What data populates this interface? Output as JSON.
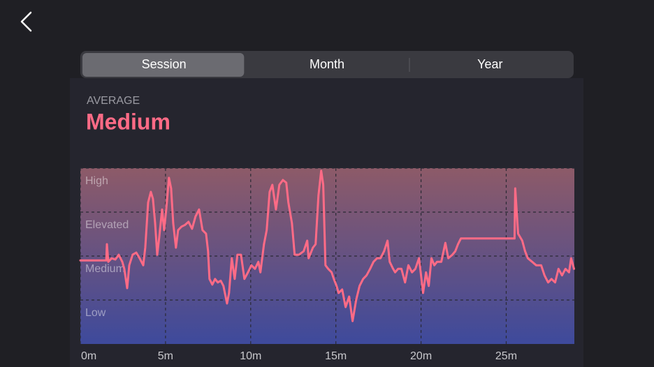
{
  "tabs": {
    "items": [
      "Session",
      "Month",
      "Year"
    ],
    "selected": 0
  },
  "summary": {
    "label": "AVERAGE",
    "value": "Medium"
  },
  "chart_data": {
    "type": "line",
    "color": "#ff6b86",
    "grid": true,
    "x": [
      0,
      1.52,
      1.56,
      1.64,
      1.84,
      2.05,
      2.25,
      2.46,
      2.58,
      2.75,
      2.87,
      3.07,
      3.28,
      3.48,
      3.69,
      3.81,
      3.98,
      4.14,
      4.26,
      4.39,
      4.51,
      4.63,
      4.8,
      4.92,
      5.04,
      5.2,
      5.33,
      5.45,
      5.61,
      5.74,
      5.94,
      6.15,
      6.35,
      6.56,
      6.76,
      6.97,
      7.17,
      7.38,
      7.5,
      7.58,
      7.75,
      7.91,
      8.07,
      8.24,
      8.4,
      8.61,
      8.73,
      8.89,
      9.06,
      9.22,
      9.43,
      9.63,
      9.84,
      10.04,
      10.25,
      10.45,
      10.57,
      10.78,
      10.94,
      11.11,
      11.27,
      11.48,
      11.68,
      11.89,
      12.09,
      12.21,
      12.42,
      12.58,
      12.83,
      13.11,
      13.32,
      13.4,
      13.65,
      13.81,
      13.98,
      14.14,
      14.26,
      14.39,
      14.55,
      14.75,
      14.88,
      15.04,
      15.16,
      15.37,
      15.57,
      15.78,
      15.98,
      16.19,
      16.39,
      16.6,
      16.8,
      17.01,
      17.21,
      17.42,
      17.62,
      17.83,
      18.03,
      18.16,
      18.36,
      18.48,
      18.65,
      18.85,
      19.06,
      19.26,
      19.47,
      19.67,
      19.88,
      20.0,
      20.12,
      20.29,
      20.45,
      20.61,
      20.78,
      20.94,
      21.19,
      21.43,
      21.6,
      21.84,
      22.01,
      22.17,
      22.34,
      22.5,
      25.49,
      25.53,
      25.7,
      25.94,
      26.11,
      26.27,
      26.52,
      26.76,
      27.05,
      27.25,
      27.46,
      27.66,
      27.87,
      28.07,
      28.28,
      28.48,
      28.69,
      28.81,
      28.98
    ],
    "values": [
      1.9,
      1.9,
      2.27,
      1.87,
      1.95,
      1.92,
      2.03,
      1.87,
      1.71,
      1.27,
      1.79,
      2.03,
      2.08,
      1.95,
      1.79,
      2.19,
      3.22,
      3.46,
      3.3,
      2.75,
      2.03,
      2.43,
      3.06,
      2.59,
      3.06,
      3.78,
      3.54,
      2.75,
      2.19,
      2.59,
      2.67,
      2.71,
      2.78,
      2.62,
      2.9,
      3.06,
      2.59,
      2.51,
      2.11,
      1.48,
      1.35,
      1.48,
      1.4,
      1.44,
      1.32,
      0.92,
      1.16,
      1.95,
      1.48,
      2.03,
      2.03,
      1.48,
      1.63,
      1.79,
      1.71,
      1.87,
      1.63,
      2.27,
      2.59,
      3.46,
      3.62,
      3.06,
      3.62,
      3.73,
      3.67,
      3.22,
      2.75,
      2.03,
      2.03,
      2.11,
      2.35,
      1.95,
      2.19,
      2.27,
      3.38,
      3.94,
      3.62,
      1.79,
      1.71,
      1.63,
      1.48,
      1.32,
      1.16,
      1.24,
      0.84,
      1.08,
      0.52,
      1.0,
      1.32,
      1.48,
      1.56,
      1.71,
      1.87,
      1.95,
      1.95,
      2.11,
      2.35,
      1.87,
      1.71,
      1.63,
      1.71,
      1.71,
      1.4,
      1.79,
      1.63,
      1.71,
      1.95,
      1.56,
      1.16,
      1.63,
      1.32,
      1.95,
      1.79,
      1.87,
      1.87,
      2.3,
      1.95,
      2.03,
      2.11,
      2.27,
      2.4,
      2.4,
      2.4,
      3.54,
      2.51,
      2.35,
      2.11,
      1.95,
      1.87,
      1.79,
      1.79,
      1.56,
      1.4,
      1.48,
      1.4,
      1.71,
      1.56,
      1.71,
      1.63,
      1.95,
      1.71
    ],
    "xlim": [
      0,
      29
    ],
    "xticks": [
      {
        "value": 0,
        "label": "0m"
      },
      {
        "value": 5,
        "label": "5m"
      },
      {
        "value": 10,
        "label": "10m"
      },
      {
        "value": 15,
        "label": "15m"
      },
      {
        "value": 20,
        "label": "20m"
      },
      {
        "value": 25,
        "label": "25m"
      }
    ],
    "ylim": [
      0,
      4
    ],
    "yticks": [
      {
        "value": 1,
        "label": "Low"
      },
      {
        "value": 2,
        "label": "Medium"
      },
      {
        "value": 3,
        "label": "Elevated"
      },
      {
        "value": 4,
        "label": "High"
      }
    ]
  }
}
